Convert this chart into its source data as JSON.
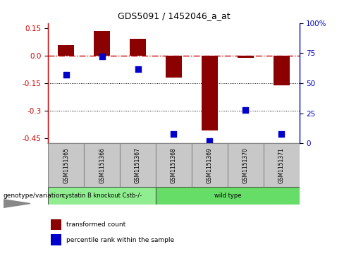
{
  "title": "GDS5091 / 1452046_a_at",
  "samples": [
    "GSM1151365",
    "GSM1151366",
    "GSM1151367",
    "GSM1151368",
    "GSM1151369",
    "GSM1151370",
    "GSM1151371"
  ],
  "transformed_count": [
    0.06,
    0.135,
    0.095,
    -0.12,
    -0.41,
    -0.01,
    -0.16
  ],
  "percentile_rank": [
    57,
    72,
    62,
    8,
    2,
    28,
    8
  ],
  "ylim_left": [
    -0.48,
    0.18
  ],
  "ylim_right": [
    0,
    100
  ],
  "yticks_left": [
    0.15,
    0.0,
    -0.15,
    -0.3,
    -0.45
  ],
  "yticks_right": [
    100,
    75,
    50,
    25,
    0
  ],
  "groups": [
    {
      "label": "cystatin B knockout Cstb-/-",
      "samples": [
        0,
        1,
        2
      ],
      "color": "#90EE90"
    },
    {
      "label": "wild type",
      "samples": [
        3,
        4,
        5,
        6
      ],
      "color": "#66DD66"
    }
  ],
  "bar_color": "#8B0000",
  "dot_color": "#0000CC",
  "ref_line_color": "#CC0000",
  "dotted_lines": [
    -0.15,
    -0.3
  ],
  "bar_width": 0.45,
  "dot_size": 30,
  "background_color": "#ffffff",
  "genotype_label": "genotype/variation",
  "legend_items": [
    {
      "label": "transformed count",
      "color": "#8B0000"
    },
    {
      "label": "percentile rank within the sample",
      "color": "#0000CC"
    }
  ],
  "left_axis_color": "#CC0000",
  "right_axis_color": "#0000CC"
}
